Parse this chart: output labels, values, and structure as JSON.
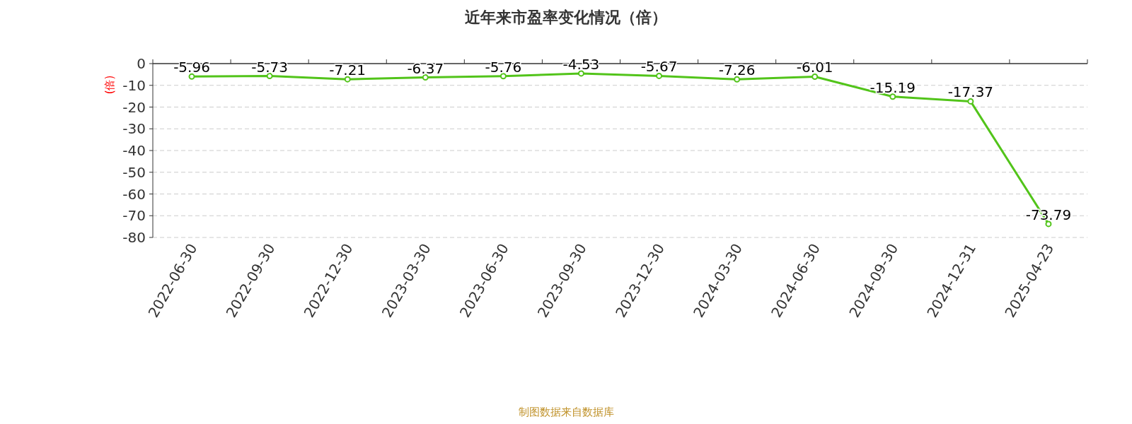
{
  "chart_data": {
    "type": "line",
    "title": "近年来市盈率变化情况（倍）",
    "ylabel": "(倍)",
    "categories": [
      "2022-06-30",
      "2022-09-30",
      "2022-12-30",
      "2023-03-30",
      "2023-06-30",
      "2023-09-30",
      "2023-12-30",
      "2024-03-30",
      "2024-06-30",
      "2024-09-30",
      "2024-12-31",
      "2025-04-23"
    ],
    "series": [
      {
        "color": "#52c41a",
        "values": [
          -5.96,
          -5.73,
          -7.21,
          -6.37,
          -5.76,
          -4.53,
          -5.67,
          -7.26,
          -6.01,
          -15.19,
          -17.37,
          -73.79
        ]
      }
    ],
    "ylim": [
      -80,
      0
    ],
    "yticks": [
      0,
      -10,
      -20,
      -30,
      -40,
      -50,
      -60,
      -70,
      -80
    ],
    "grid": "y",
    "marker": "circle",
    "data_labels": true,
    "annotations": [
      "制图数据来自数据库"
    ]
  }
}
